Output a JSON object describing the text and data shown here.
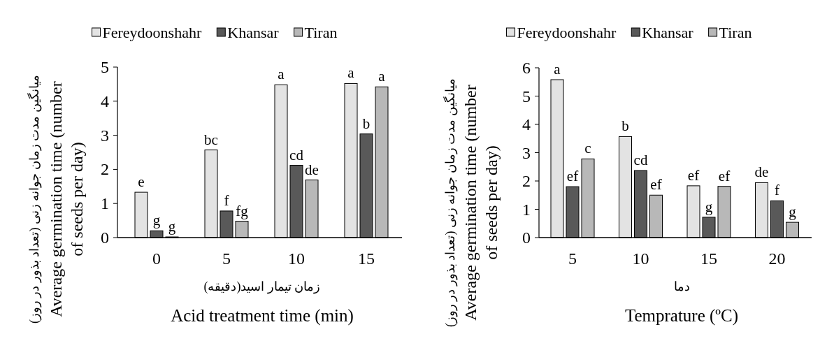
{
  "chart_data": [
    {
      "type": "bar",
      "xlabel": "Acid treatment time (min)",
      "ylabel": "Average germination time (number of seeds per day)",
      "categories": [
        "0",
        "5",
        "10",
        "15"
      ],
      "series": [
        {
          "name": "Fereydoonshahr",
          "color": "#e3e3e3",
          "values": [
            1.33,
            2.57,
            4.48,
            4.52
          ],
          "value_labels": [
            "e",
            "bc",
            "a",
            "a"
          ]
        },
        {
          "name": "Khansar",
          "color": "#595959",
          "values": [
            0.2,
            0.78,
            2.12,
            3.04
          ],
          "value_labels": [
            "g",
            "f",
            "cd",
            "b"
          ]
        },
        {
          "name": "Tiran",
          "color": "#b8b8b8",
          "values": [
            0.02,
            0.48,
            1.69,
            4.42
          ],
          "value_labels": [
            "g",
            "fg",
            "de",
            "a"
          ]
        }
      ],
      "ylim": [
        0,
        5
      ],
      "yticks": [
        0,
        1,
        2,
        3,
        4,
        5
      ],
      "legend": "top",
      "annotations": [
        "زمان تیمار اسید(دقیقه)",
        "میانگین مدت زمان جوانه زنی (تعداد بذور در روز)"
      ]
    },
    {
      "type": "bar",
      "xlabel": "Temprature (ºC)",
      "ylabel": "Average germination time (number of seeds per day)",
      "categories": [
        "5",
        "10",
        "15",
        "20"
      ],
      "series": [
        {
          "name": "Fereydoonshahr",
          "color": "#e3e3e3",
          "values": [
            5.58,
            3.57,
            1.83,
            1.94
          ],
          "value_labels": [
            "a",
            "b",
            "ef",
            "de"
          ]
        },
        {
          "name": "Khansar",
          "color": "#595959",
          "values": [
            1.8,
            2.37,
            0.72,
            1.3
          ],
          "value_labels": [
            "ef",
            "cd",
            "g",
            "f"
          ]
        },
        {
          "name": "Tiran",
          "color": "#b8b8b8",
          "values": [
            2.78,
            1.5,
            1.81,
            0.54
          ],
          "value_labels": [
            "c",
            "ef",
            "ef",
            "g"
          ]
        }
      ],
      "ylim": [
        0,
        6
      ],
      "yticks": [
        0,
        1,
        2,
        3,
        4,
        5,
        6
      ],
      "legend": "top",
      "annotations": [
        "دما",
        "میانگین مدت زمان جوانه زنی (تعداد بذور در روز)"
      ]
    }
  ]
}
